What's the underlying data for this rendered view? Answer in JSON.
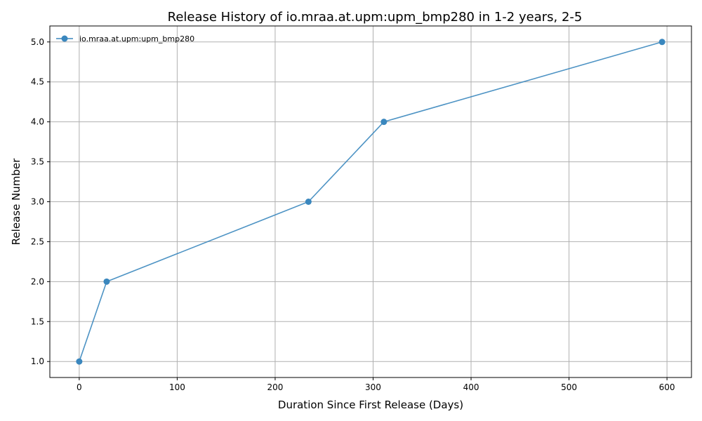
{
  "chart_data": {
    "type": "line",
    "title": "Release History of io.mraa.at.upm:upm_bmp280 in 1-2 years, 2-5",
    "xlabel": "Duration Since First Release (Days)",
    "ylabel": "Release Number",
    "xlim": [
      -30,
      625
    ],
    "ylim": [
      0.8,
      5.2
    ],
    "xticks": [
      0,
      100,
      200,
      300,
      400,
      500,
      600
    ],
    "yticks": [
      1.0,
      1.5,
      2.0,
      2.5,
      3.0,
      3.5,
      4.0,
      4.5,
      5.0
    ],
    "xtick_labels": [
      "0",
      "100",
      "200",
      "300",
      "400",
      "500",
      "600"
    ],
    "ytick_labels": [
      "1.0",
      "1.5",
      "2.0",
      "2.5",
      "3.0",
      "3.5",
      "4.0",
      "4.5",
      "5.0"
    ],
    "grid": true,
    "legend_position": "top-left",
    "series": [
      {
        "name": "io.mraa.at.upm:upm_bmp280",
        "color": "#3a87be",
        "marker": "circle",
        "x": [
          0,
          28,
          234,
          311,
          595
        ],
        "y": [
          1,
          2,
          3,
          4,
          5
        ]
      }
    ]
  }
}
